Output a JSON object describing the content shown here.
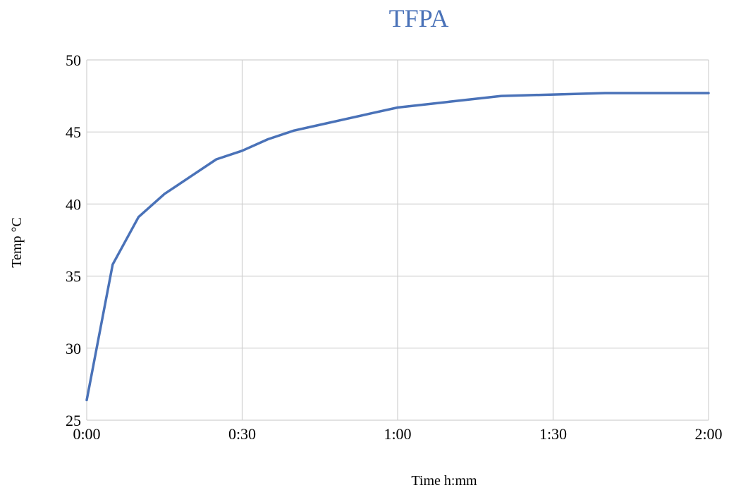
{
  "colors": {
    "series": "#4a72b8",
    "title": "#4a72b8",
    "grid": "#d0d0d0"
  },
  "chart_data": {
    "type": "line",
    "title": "TFPA",
    "xlabel": "Time h:mm",
    "ylabel": "Temp °C",
    "xlim": [
      0,
      120
    ],
    "ylim": [
      25,
      50
    ],
    "x_unit": "minutes",
    "x_ticks": [
      0,
      30,
      60,
      90,
      120
    ],
    "x_tick_labels": [
      "0:00",
      "0:30",
      "1:00",
      "1:30",
      "2:00"
    ],
    "y_ticks": [
      25,
      30,
      35,
      40,
      45,
      50
    ],
    "y_tick_labels": [
      "25",
      "30",
      "35",
      "40",
      "45",
      "50"
    ],
    "grid": true,
    "legend": "none",
    "series": [
      {
        "x": [
          0,
          5,
          10,
          15,
          20,
          25,
          30,
          35,
          40,
          45,
          50,
          55,
          60,
          70,
          80,
          90,
          100,
          110,
          120
        ],
        "values": [
          26.4,
          35.8,
          39.1,
          40.7,
          41.9,
          43.1,
          43.7,
          44.5,
          45.1,
          45.5,
          45.9,
          46.3,
          46.7,
          47.1,
          47.5,
          47.6,
          47.7,
          47.7,
          47.7
        ]
      }
    ]
  }
}
